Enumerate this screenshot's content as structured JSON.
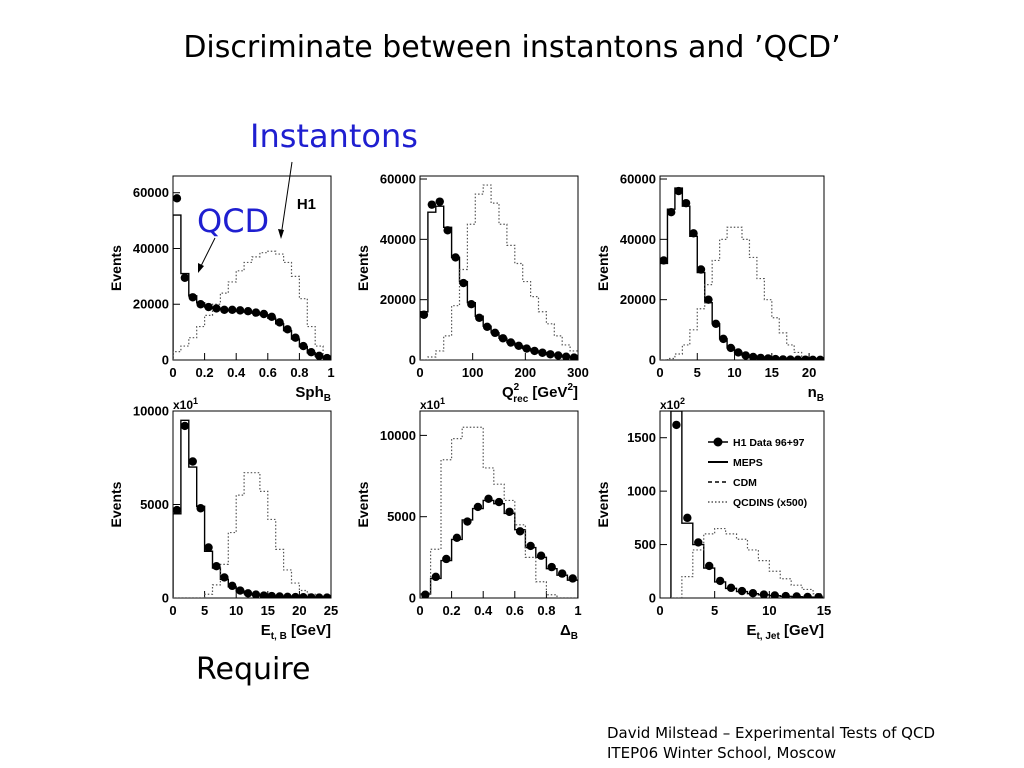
{
  "slide": {
    "title": "Discriminate between instantons and ’QCD’",
    "label_instantons": "Instantons",
    "label_qcd": "QCD",
    "require": "Require",
    "footer_line1": "David Milstead – Experimental Tests of QCD",
    "footer_line2": "ITEP06 Winter School, Moscow"
  },
  "legend": {
    "data": "H1 Data 96+97",
    "meps": "MEPS",
    "cdm": "CDM",
    "qcdins": "QCDINS (x500)"
  },
  "colors": {
    "callout": "#1f1fd0",
    "axes": "#000000",
    "data": "#000000",
    "instanton": "#555555"
  },
  "chart_data": [
    {
      "type": "line",
      "id": "sph",
      "ylabel": "Events",
      "xlabel_main": "Sph",
      "xlabel_sub": "B",
      "tag": "H1",
      "exponent": "",
      "xlim": [
        0,
        1
      ],
      "ylim": [
        0,
        66000
      ],
      "xticks": [
        0,
        0.2,
        0.4,
        0.6,
        0.8,
        1
      ],
      "xtick_labels": [
        "0",
        "0.2",
        "0.4",
        "0.6",
        "0.8",
        "1"
      ],
      "yticks": [
        0,
        20000,
        40000,
        60000
      ],
      "ytick_labels": [
        "0",
        "20000",
        "40000",
        "60000"
      ],
      "bin_edges": [
        0,
        0.05,
        0.1,
        0.15,
        0.2,
        0.25,
        0.3,
        0.35,
        0.4,
        0.45,
        0.5,
        0.55,
        0.6,
        0.65,
        0.7,
        0.75,
        0.8,
        0.85,
        0.9,
        0.95,
        1.0
      ],
      "series": [
        {
          "name": "H1 Data 96+97",
          "values": [
            58000,
            29500,
            22500,
            20000,
            19000,
            18500,
            18000,
            18000,
            17800,
            17500,
            17000,
            16500,
            15500,
            13500,
            11000,
            8000,
            5000,
            2800,
            1500,
            700
          ]
        },
        {
          "name": "MEPS",
          "values": [
            52000,
            31000,
            23000,
            20500,
            19000,
            18500,
            18000,
            17800,
            17500,
            17200,
            16800,
            16200,
            15000,
            13000,
            10500,
            7500,
            4800,
            2600,
            1400,
            600
          ]
        },
        {
          "name": "QCDINS (x500)",
          "values": [
            3000,
            5000,
            8000,
            12000,
            16000,
            20000,
            24000,
            28000,
            32000,
            35000,
            37000,
            38500,
            39000,
            38000,
            35000,
            30000,
            22000,
            12000,
            5000,
            1000
          ]
        }
      ]
    },
    {
      "type": "line",
      "id": "q2rec",
      "ylabel": "Events",
      "xlabel_main": "Q",
      "xlabel_sub": "rec",
      "xlabel_sup": "2",
      "xlabel_unit": "[GeV",
      "xlabel_unit_sup": "2",
      "xlabel_unit_end": "]",
      "exponent": "",
      "xlim": [
        0,
        300
      ],
      "ylim": [
        0,
        61000
      ],
      "xticks": [
        0,
        100,
        200,
        300
      ],
      "xtick_labels": [
        "0",
        "100",
        "200",
        "300"
      ],
      "yticks": [
        0,
        20000,
        40000,
        60000
      ],
      "ytick_labels": [
        "0",
        "20000",
        "40000",
        "60000"
      ],
      "bin_edges": [
        0,
        15,
        30,
        45,
        60,
        75,
        90,
        105,
        120,
        135,
        150,
        165,
        180,
        195,
        210,
        225,
        240,
        255,
        270,
        285,
        300
      ],
      "series": [
        {
          "name": "H1 Data 96+97",
          "values": [
            15000,
            51500,
            52500,
            43000,
            34000,
            25500,
            18500,
            14000,
            11000,
            9000,
            7200,
            5800,
            4700,
            3800,
            3000,
            2400,
            1900,
            1500,
            1100,
            800
          ]
        },
        {
          "name": "MEPS",
          "values": [
            16000,
            49000,
            51000,
            44000,
            34000,
            26000,
            19000,
            14500,
            11200,
            9000,
            7200,
            5800,
            4700,
            3800,
            3000,
            2400,
            1900,
            1500,
            1100,
            800
          ]
        },
        {
          "name": "QCDINS (x500)",
          "values": [
            0,
            1000,
            3000,
            8000,
            18000,
            30000,
            45000,
            55000,
            58000,
            52000,
            45000,
            38000,
            32000,
            26000,
            21000,
            16000,
            12000,
            8000,
            5000,
            3000
          ]
        }
      ]
    },
    {
      "type": "line",
      "id": "nb",
      "ylabel": "Events",
      "xlabel_main": "n",
      "xlabel_sub": "B",
      "exponent": "",
      "xlim": [
        0,
        22
      ],
      "ylim": [
        0,
        61000
      ],
      "xticks": [
        0,
        5,
        10,
        15,
        20
      ],
      "xtick_labels": [
        "0",
        "5",
        "10",
        "15",
        "20"
      ],
      "yticks": [
        0,
        20000,
        40000,
        60000
      ],
      "ytick_labels": [
        "0",
        "20000",
        "40000",
        "60000"
      ],
      "bin_edges": [
        0,
        1,
        2,
        3,
        4,
        5,
        6,
        7,
        8,
        9,
        10,
        11,
        12,
        13,
        14,
        15,
        16,
        17,
        18,
        19,
        20,
        21,
        22
      ],
      "series": [
        {
          "name": "H1 Data 96+97",
          "values": [
            33000,
            49000,
            56000,
            52000,
            42000,
            30000,
            20000,
            12000,
            7000,
            4000,
            2500,
            1500,
            1000,
            700,
            500,
            300,
            200,
            150,
            100,
            80,
            60,
            40
          ]
        },
        {
          "name": "MEPS",
          "values": [
            32000,
            50000,
            57000,
            51000,
            41000,
            29000,
            19000,
            12000,
            7000,
            4000,
            2500,
            1500,
            1000,
            700,
            500,
            300,
            200,
            150,
            100,
            80,
            60,
            40
          ]
        },
        {
          "name": "QCDINS (x500)",
          "values": [
            0,
            500,
            2000,
            5000,
            10000,
            17000,
            25000,
            33000,
            40000,
            44000,
            44000,
            40000,
            34000,
            27000,
            20000,
            14000,
            9000,
            5000,
            2500,
            1000,
            400,
            100
          ]
        }
      ]
    },
    {
      "type": "line",
      "id": "etb",
      "ylabel": "Events",
      "xlabel_main": "E",
      "xlabel_sub": "t, B",
      "xlabel_unit": "[GeV]",
      "exponent": "x10",
      "exponent_sup": "1",
      "xlim": [
        0,
        25
      ],
      "ylim": [
        0,
        10000
      ],
      "xticks": [
        0,
        5,
        10,
        15,
        20,
        25
      ],
      "xtick_labels": [
        "0",
        "5",
        "10",
        "15",
        "20",
        "25"
      ],
      "yticks": [
        0,
        5000,
        10000
      ],
      "ytick_labels": [
        "0",
        "5000",
        "10000"
      ],
      "bin_edges": [
        0,
        1.25,
        2.5,
        3.75,
        5,
        6.25,
        7.5,
        8.75,
        10,
        11.25,
        12.5,
        13.75,
        15,
        16.25,
        17.5,
        18.75,
        20,
        21.25,
        22.5,
        23.75,
        25
      ],
      "series": [
        {
          "name": "H1 Data 96+97",
          "values": [
            4700,
            9200,
            7300,
            4800,
            2700,
            1700,
            1100,
            650,
            400,
            250,
            180,
            130,
            100,
            80,
            60,
            50,
            40,
            30,
            25,
            20
          ]
        },
        {
          "name": "MEPS",
          "values": [
            4500,
            9500,
            7000,
            4900,
            2500,
            1600,
            1000,
            600,
            380,
            240,
            170,
            120,
            90,
            70,
            50,
            40,
            30,
            25,
            20,
            15
          ]
        },
        {
          "name": "QCDINS (x500)",
          "values": [
            0,
            0,
            0,
            0,
            200,
            700,
            1800,
            3500,
            5500,
            6700,
            6700,
            5700,
            4200,
            2600,
            1500,
            800,
            400,
            200,
            80,
            30
          ]
        }
      ]
    },
    {
      "type": "line",
      "id": "deltab",
      "ylabel": "Events",
      "xlabel_main": "Δ",
      "xlabel_sub": "B",
      "exponent": "x10",
      "exponent_sup": "1",
      "xlim": [
        0,
        1
      ],
      "ylim": [
        0,
        11500
      ],
      "xticks": [
        0,
        0.2,
        0.4,
        0.6,
        0.8,
        1
      ],
      "xtick_labels": [
        "0",
        "0.2",
        "0.4",
        "0.6",
        "0.8",
        "1"
      ],
      "yticks": [
        0,
        5000,
        10000
      ],
      "ytick_labels": [
        "0",
        "5000",
        "10000"
      ],
      "bin_edges": [
        0,
        0.067,
        0.133,
        0.2,
        0.267,
        0.333,
        0.4,
        0.467,
        0.533,
        0.6,
        0.667,
        0.733,
        0.8,
        0.867,
        0.933,
        1.0
      ],
      "series": [
        {
          "name": "H1 Data 96+97",
          "values": [
            200,
            1300,
            2400,
            3700,
            4700,
            5600,
            6100,
            5900,
            5300,
            4100,
            3200,
            2600,
            1900,
            1500,
            1200
          ]
        },
        {
          "name": "MEPS",
          "values": [
            250,
            1200,
            2300,
            3600,
            4800,
            5500,
            6000,
            5800,
            5200,
            4200,
            3100,
            2500,
            1800,
            1400,
            1100
          ]
        },
        {
          "name": "QCDINS (x500)",
          "values": [
            300,
            3000,
            8500,
            9800,
            10500,
            10500,
            8000,
            7000,
            6000,
            4500,
            2500,
            1000,
            200,
            0,
            0
          ]
        }
      ]
    },
    {
      "type": "line",
      "id": "etjet",
      "ylabel": "Events",
      "xlabel_main": "E",
      "xlabel_sub": "t, Jet",
      "xlabel_unit": "[GeV]",
      "exponent": "x10",
      "exponent_sup": "2",
      "xlim": [
        0,
        15
      ],
      "ylim": [
        0,
        1750
      ],
      "xticks": [
        0,
        5,
        10,
        15
      ],
      "xtick_labels": [
        "0",
        "5",
        "10",
        "15"
      ],
      "yticks": [
        0,
        500,
        1000,
        1500
      ],
      "ytick_labels": [
        "0",
        "500",
        "1000",
        "1500"
      ],
      "bin_edges": [
        1,
        2,
        3,
        4,
        5,
        6,
        7,
        8,
        9,
        10,
        11,
        12,
        13,
        14,
        15
      ],
      "series": [
        {
          "name": "H1 Data 96+97",
          "values": [
            1620,
            750,
            520,
            300,
            160,
            95,
            65,
            45,
            32,
            24,
            18,
            14,
            10,
            8
          ]
        },
        {
          "name": "MEPS",
          "values": [
            1750,
            700,
            500,
            280,
            150,
            90,
            60,
            40,
            30,
            22,
            16,
            12,
            9,
            7
          ]
        },
        {
          "name": "QCDINS (x500)",
          "values": [
            0,
            200,
            450,
            600,
            650,
            600,
            550,
            450,
            350,
            250,
            180,
            120,
            80,
            40
          ]
        }
      ]
    }
  ]
}
